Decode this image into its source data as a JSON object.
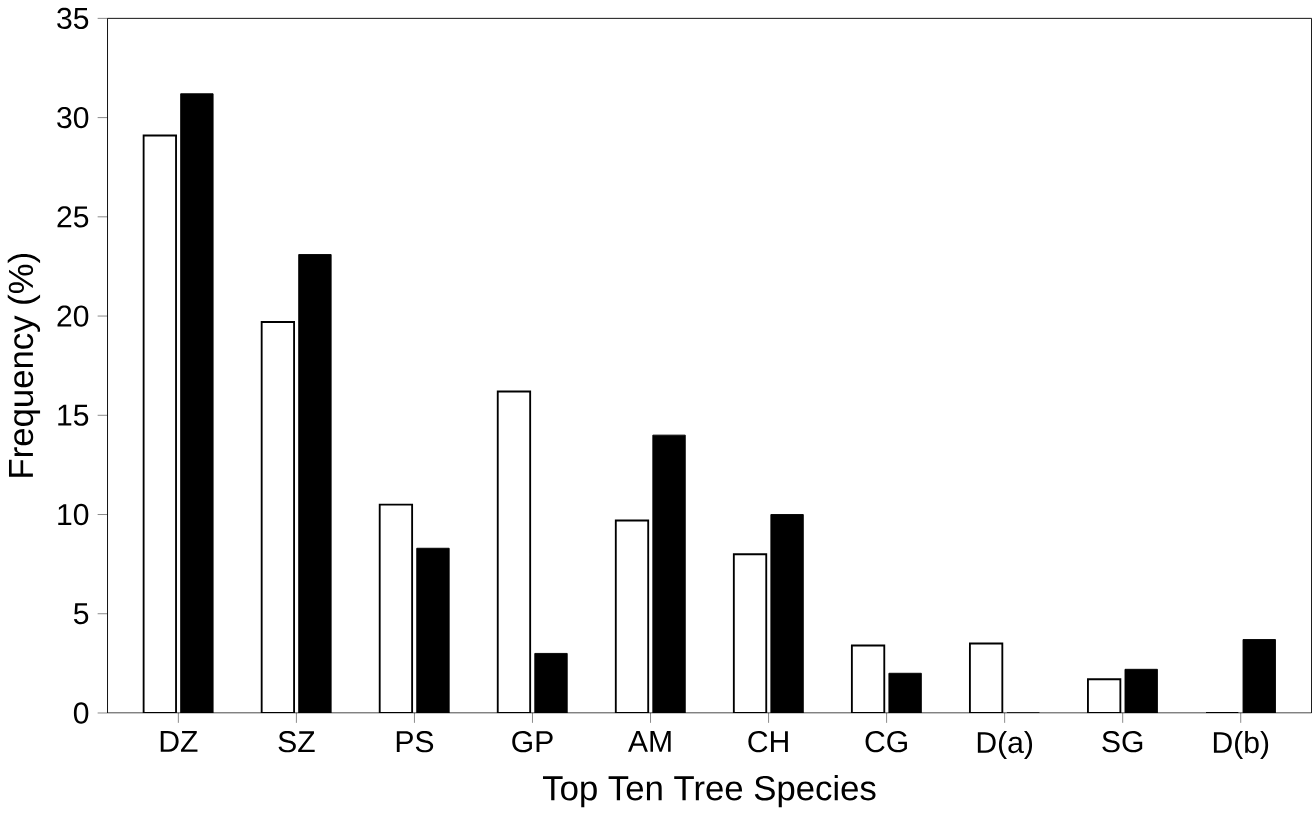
{
  "chart_data": {
    "type": "bar",
    "xlabel": "Top Ten Tree Species",
    "ylabel": "Frequency (%)",
    "categories": [
      "DZ",
      "SZ",
      "PS",
      "GP",
      "AM",
      "CH",
      "CG",
      "D(a)",
      "SG",
      "D(b)"
    ],
    "series": [
      {
        "color": "#ffffff",
        "values": [
          29.1,
          19.7,
          10.5,
          16.2,
          9.7,
          8.0,
          3.4,
          3.5,
          1.7,
          0
        ]
      },
      {
        "color": "#000000",
        "values": [
          31.2,
          23.1,
          8.3,
          3.0,
          14.0,
          10.0,
          2.0,
          0,
          2.2,
          3.7
        ]
      }
    ],
    "ylim": [
      0,
      35
    ],
    "yticks": [
      0,
      5,
      10,
      15,
      20,
      25,
      30,
      35
    ],
    "grid": false
  }
}
